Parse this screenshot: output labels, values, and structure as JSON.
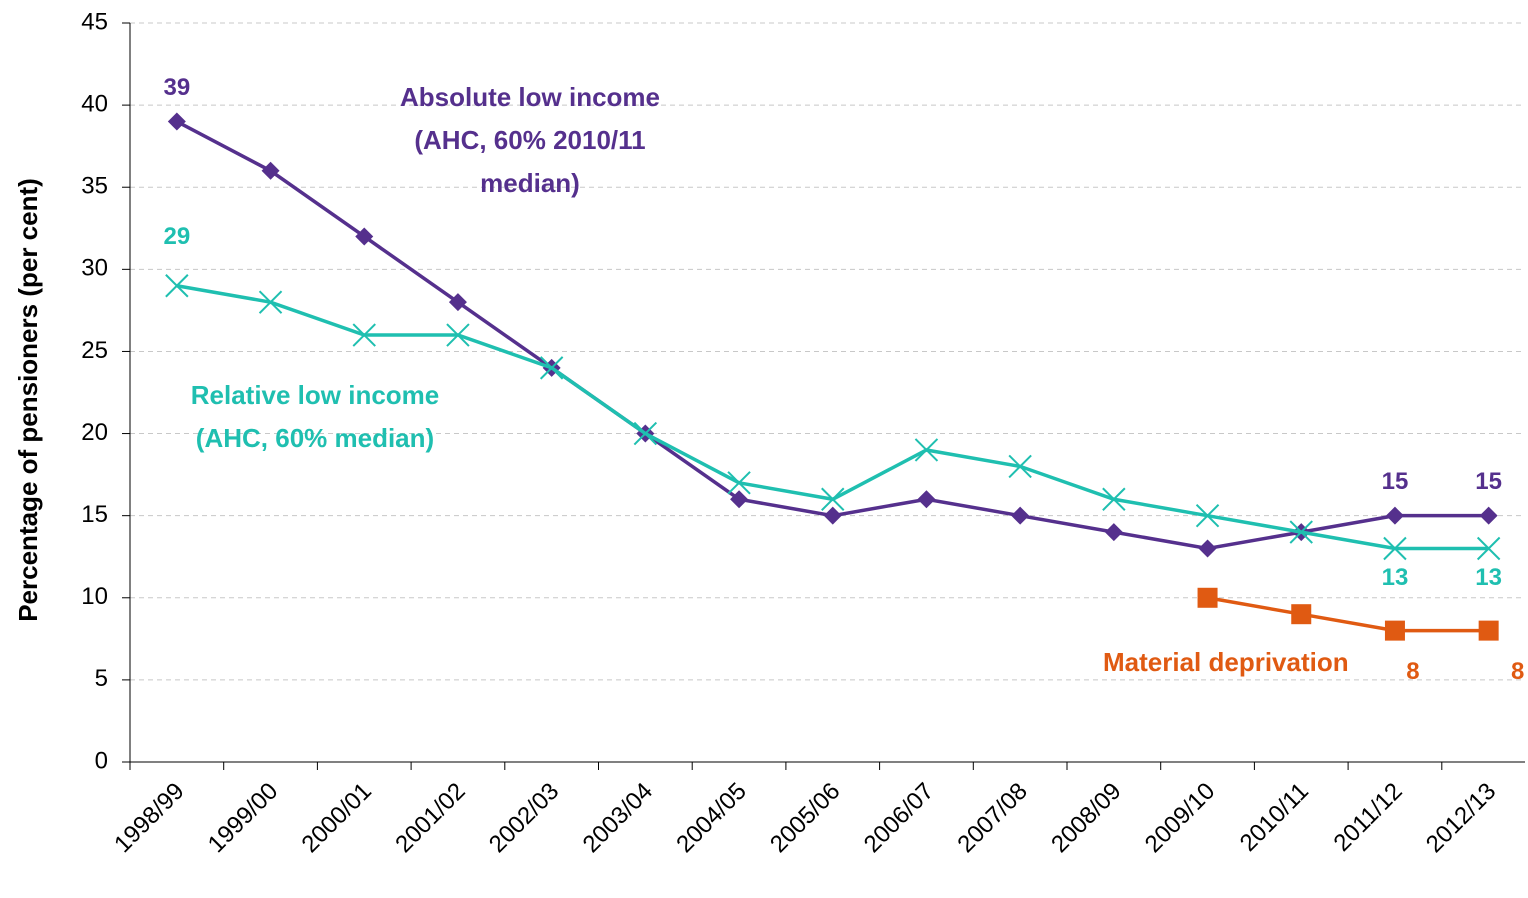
{
  "chart_data": {
    "type": "line",
    "y_label": "Percentage of pensioners (per cent)",
    "categories": [
      "1998/99",
      "1999/00",
      "2000/01",
      "2001/02",
      "2002/03",
      "2003/04",
      "2004/05",
      "2005/06",
      "2006/07",
      "2007/08",
      "2008/09",
      "2009/10",
      "2010/11",
      "2011/12",
      "2012/13"
    ],
    "series": [
      {
        "name": "Absolute low income (AHC, 60% 2010/11 median)",
        "color": "#55308d",
        "marker": "diamond",
        "values": [
          39,
          36,
          32,
          28,
          24,
          20,
          16,
          15,
          16,
          15,
          14,
          13,
          14,
          15,
          15
        ]
      },
      {
        "name": "Relative low income (AHC, 60% median)",
        "color": "#1fbfb0",
        "marker": "x",
        "values": [
          29,
          28,
          26,
          26,
          24,
          20,
          17,
          16,
          19,
          18,
          16,
          15,
          14,
          13,
          13
        ]
      },
      {
        "name": "Material deprivation",
        "color": "#e05a12",
        "marker": "square",
        "values": [
          null,
          null,
          null,
          null,
          null,
          null,
          null,
          null,
          null,
          null,
          null,
          10,
          9,
          8,
          8
        ]
      }
    ],
    "ylim": [
      0,
      45
    ],
    "yticks": [
      0,
      5,
      10,
      15,
      20,
      25,
      30,
      35,
      40,
      45
    ],
    "grid": true
  }
}
